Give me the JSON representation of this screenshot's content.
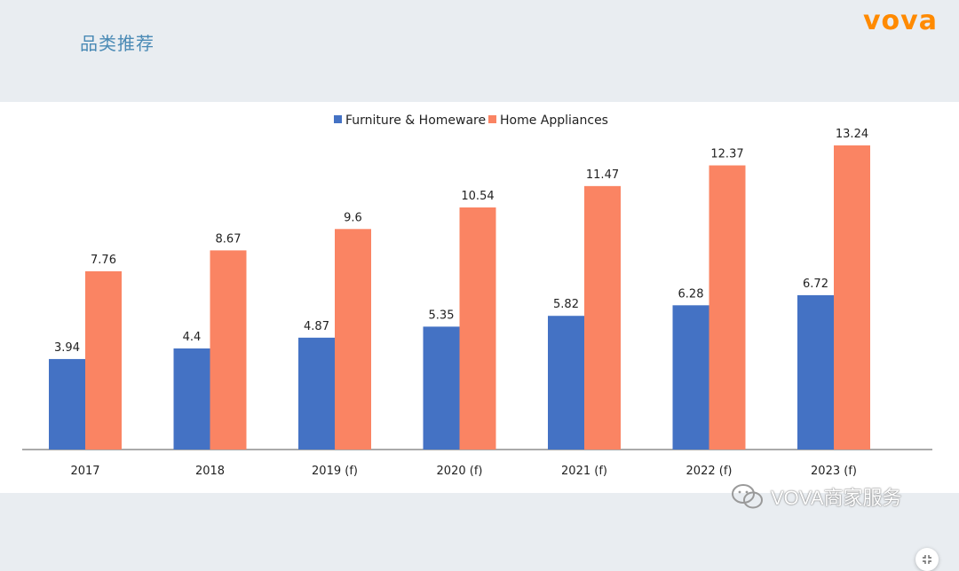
{
  "header": {
    "title": "品类推荐",
    "logo_text": "vova",
    "logo_color": "#ff8a00"
  },
  "colors": {
    "furniture": "#4472c4",
    "appliances": "#fa8463",
    "axis": "#555555"
  },
  "watermark": {
    "text": "VOVA商家服务",
    "icon": "wechat-icon"
  },
  "chart_data": {
    "type": "bar",
    "categories": [
      "2017",
      "2018",
      "2019 (f)",
      "2020 (f)",
      "2021 (f)",
      "2022 (f)",
      "2023 (f)"
    ],
    "series": [
      {
        "name": "Furniture & Homeware",
        "values": [
          3.94,
          4.4,
          4.87,
          5.35,
          5.82,
          6.28,
          6.72
        ]
      },
      {
        "name": "Home Appliances",
        "values": [
          7.76,
          8.67,
          9.6,
          10.54,
          11.47,
          12.37,
          13.24
        ]
      }
    ],
    "value_labels": [
      [
        "3.94",
        "4.4",
        "4.87",
        "5.35",
        "5.82",
        "6.28",
        "6.72"
      ],
      [
        "7.76",
        "8.67",
        "9.6",
        "10.54",
        "11.47",
        "12.37",
        "13.24"
      ]
    ],
    "ylim": [
      0,
      13.24
    ],
    "grid": false,
    "legend_position": "top-center"
  }
}
